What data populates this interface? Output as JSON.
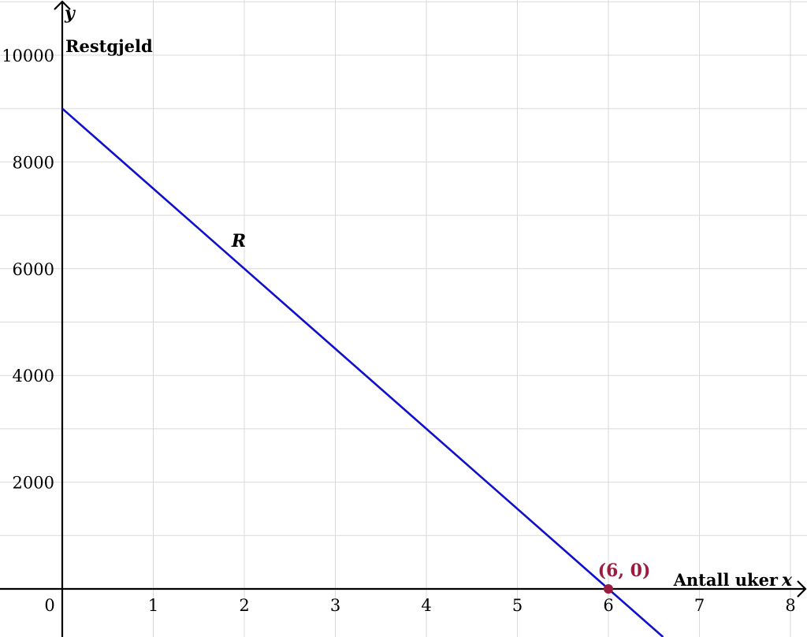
{
  "chart_data": {
    "type": "line",
    "title": "",
    "xlabel": "Antall uker",
    "xvar": "x",
    "ylabel": "Restgjeld",
    "yvar": "y",
    "xlim": [
      0,
      8
    ],
    "ylim": [
      0,
      10000
    ],
    "xticks": [
      1,
      2,
      3,
      4,
      5,
      6,
      7,
      8
    ],
    "yticks": [
      2000,
      4000,
      6000,
      8000,
      10000
    ],
    "origin_label": "0",
    "grid": true,
    "series": [
      {
        "name": "R",
        "color": "#1010cc",
        "x": [
          0,
          6
        ],
        "y": [
          9000,
          0
        ]
      }
    ],
    "points": [
      {
        "label": "(6, 0)",
        "x": 6,
        "y": 0,
        "color": "#9b1c3f"
      }
    ]
  }
}
